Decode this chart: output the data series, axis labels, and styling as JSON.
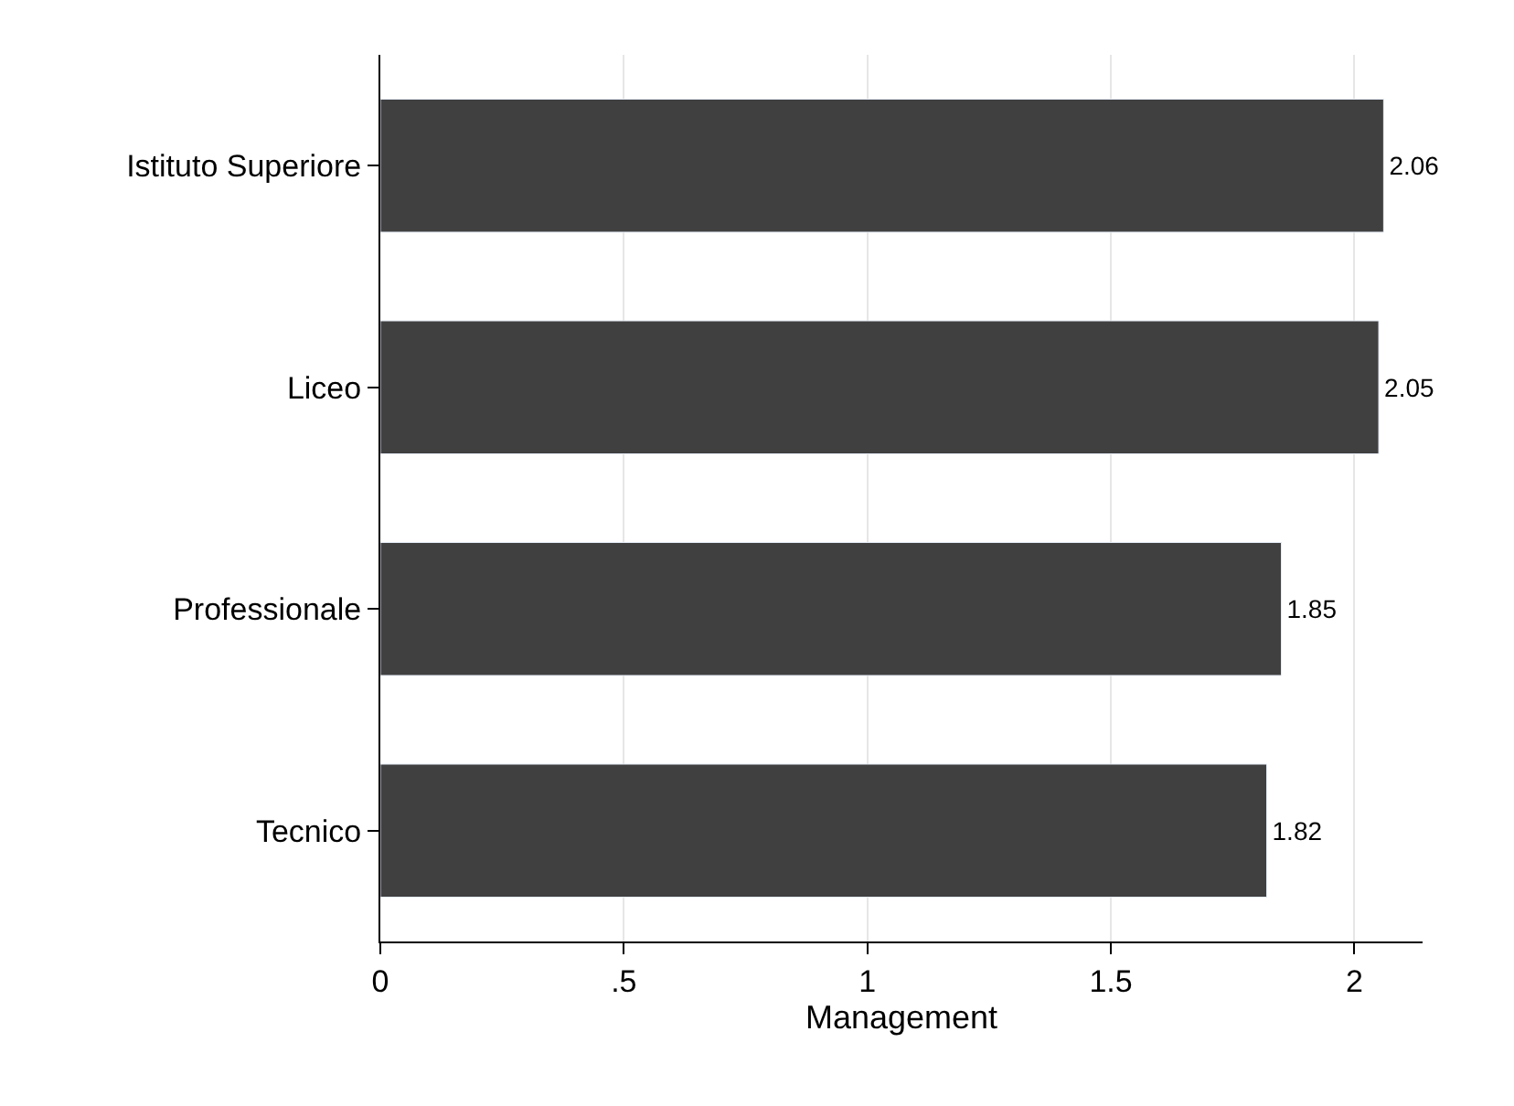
{
  "chart_data": {
    "type": "bar",
    "orientation": "horizontal",
    "xlabel": "Management",
    "categories": [
      "Istituto Superiore",
      "Liceo",
      "Professionale",
      "Tecnico"
    ],
    "values": [
      2.06,
      2.05,
      1.85,
      1.82
    ],
    "color": "#404040",
    "xlim": [
      0,
      2.14
    ],
    "xticks": [
      0,
      {
        "value": 0.5,
        "label": ".5"
      },
      1,
      1.5,
      2
    ],
    "grid": "x",
    "data_labels": true
  }
}
